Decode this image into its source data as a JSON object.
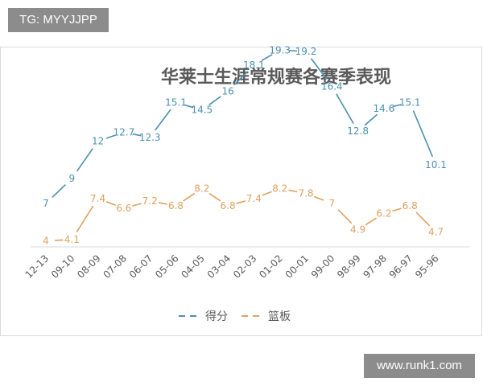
{
  "badges": {
    "top_left": "TG: MYYJJPP",
    "bottom_right": "www.runk1.com"
  },
  "colors": {
    "points": "#4a90b0",
    "rebounds": "#e0a060",
    "axis": "#d9d9d9",
    "text": "#595959"
  },
  "chart_data": {
    "type": "line",
    "title": "华莱士生涯常规赛各赛季表现",
    "categories": [
      "12-13",
      "09-10",
      "08-09",
      "07-08",
      "06-07",
      "05-06",
      "04-05",
      "03-04",
      "02-03",
      "01-02",
      "00-01",
      "99-00",
      "98-99",
      "97-98",
      "96-97",
      "95-96"
    ],
    "series": [
      {
        "name": "得分",
        "values": [
          7,
          9,
          12,
          12.7,
          12.3,
          15.1,
          14.5,
          16,
          18.1,
          19.3,
          19.2,
          16.4,
          12.8,
          14.6,
          15.1,
          10.1
        ]
      },
      {
        "name": "篮板",
        "values": [
          4,
          4.1,
          7.4,
          6.6,
          7.2,
          6.8,
          8.2,
          6.8,
          7.4,
          8.2,
          7.8,
          7,
          4.9,
          6.2,
          6.8,
          4.7
        ]
      }
    ],
    "legend": "bottom",
    "grid": false,
    "ylim": [
      0,
      24
    ]
  }
}
